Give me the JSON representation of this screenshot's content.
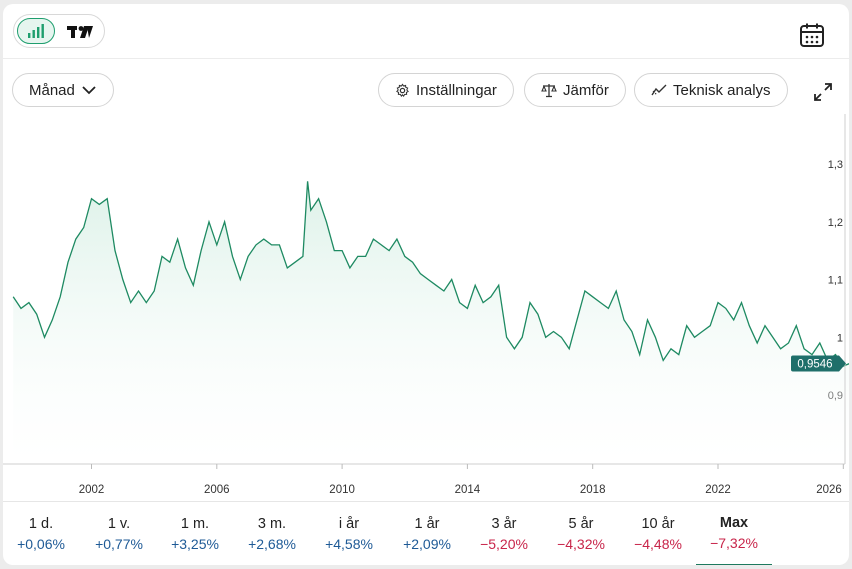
{
  "toolbar": {
    "period_select": "Månad",
    "settings_label": "Inställningar",
    "compare_label": "Jämför",
    "technical_label": "Teknisk analys"
  },
  "chart_data": {
    "type": "area",
    "title": "",
    "xlabel": "",
    "ylabel": "",
    "xlim": [
      1999.5,
      2026.2
    ],
    "ylim": [
      0.8,
      1.3
    ],
    "x_ticks": [
      "2002",
      "2006",
      "2010",
      "2014",
      "2018",
      "2022",
      "2026"
    ],
    "y_ticks": [
      "1,3",
      "1,2",
      "1,1",
      "1",
      "0,9"
    ],
    "last_value_label": "0,9546",
    "colors": {
      "line": "#1e8a62",
      "fill": "#e9f6f0",
      "badge": "#1f6f6a"
    },
    "series": [
      {
        "x": [
          1999.5,
          1999.75,
          2000,
          2000.25,
          2000.5,
          2000.75,
          2001,
          2001.25,
          2001.5,
          2001.75,
          2002,
          2002.25,
          2002.5,
          2002.75,
          2003,
          2003.25,
          2003.5,
          2003.75,
          2004,
          2004.25,
          2004.5,
          2004.75,
          2005,
          2005.25,
          2005.5,
          2005.75,
          2006,
          2006.25,
          2006.5,
          2006.75,
          2007,
          2007.25,
          2007.5,
          2007.75,
          2008,
          2008.25,
          2008.5,
          2008.75,
          2008.9,
          2009,
          2009.25,
          2009.5,
          2009.75,
          2010,
          2010.25,
          2010.5,
          2010.75,
          2011,
          2011.25,
          2011.5,
          2011.75,
          2012,
          2012.25,
          2012.5,
          2012.75,
          2013,
          2013.25,
          2013.5,
          2013.75,
          2014,
          2014.25,
          2014.5,
          2014.75,
          2015,
          2015.25,
          2015.5,
          2015.75,
          2016,
          2016.25,
          2016.5,
          2016.75,
          2017,
          2017.25,
          2017.5,
          2017.75,
          2018,
          2018.25,
          2018.5,
          2018.75,
          2019,
          2019.25,
          2019.5,
          2019.75,
          2020,
          2020.25,
          2020.5,
          2020.75,
          2021,
          2021.25,
          2021.5,
          2021.75,
          2022,
          2022.25,
          2022.5,
          2022.75,
          2023,
          2023.25,
          2023.5,
          2023.75,
          2024,
          2024.25,
          2024.5,
          2024.75,
          2025,
          2025.25,
          2025.5,
          2025.75,
          2026,
          2026.2
        ],
        "y": [
          1.07,
          1.05,
          1.06,
          1.04,
          1.0,
          1.03,
          1.07,
          1.13,
          1.17,
          1.19,
          1.24,
          1.23,
          1.24,
          1.15,
          1.1,
          1.06,
          1.08,
          1.06,
          1.08,
          1.14,
          1.13,
          1.17,
          1.12,
          1.09,
          1.15,
          1.2,
          1.16,
          1.2,
          1.14,
          1.1,
          1.14,
          1.16,
          1.17,
          1.16,
          1.16,
          1.12,
          1.13,
          1.14,
          1.27,
          1.22,
          1.24,
          1.2,
          1.15,
          1.15,
          1.12,
          1.14,
          1.14,
          1.17,
          1.16,
          1.15,
          1.17,
          1.14,
          1.13,
          1.11,
          1.1,
          1.09,
          1.08,
          1.1,
          1.06,
          1.05,
          1.09,
          1.06,
          1.07,
          1.09,
          1.0,
          0.98,
          1.0,
          1.06,
          1.04,
          1.0,
          1.01,
          1.0,
          0.98,
          1.03,
          1.08,
          1.07,
          1.06,
          1.05,
          1.08,
          1.03,
          1.01,
          0.97,
          1.03,
          1.0,
          0.96,
          0.98,
          0.97,
          1.02,
          1.0,
          1.01,
          1.02,
          1.06,
          1.05,
          1.03,
          1.06,
          1.02,
          0.99,
          1.02,
          1.0,
          0.98,
          0.99,
          1.02,
          0.98,
          0.97,
          0.99,
          0.96,
          0.97,
          0.95,
          0.9546
        ]
      }
    ],
    "legend": "none",
    "grid": false
  },
  "periods": [
    {
      "label": "1 d.",
      "value": "+0,06%",
      "sign": "pos"
    },
    {
      "label": "1 v.",
      "value": "+0,77%",
      "sign": "pos"
    },
    {
      "label": "1 m.",
      "value": "+3,25%",
      "sign": "pos"
    },
    {
      "label": "3 m.",
      "value": "+2,68%",
      "sign": "pos"
    },
    {
      "label": "i år",
      "value": "+4,58%",
      "sign": "pos"
    },
    {
      "label": "1 år",
      "value": "+2,09%",
      "sign": "pos"
    },
    {
      "label": "3 år",
      "value": "−5,20%",
      "sign": "neg"
    },
    {
      "label": "5 år",
      "value": "−4,32%",
      "sign": "neg"
    },
    {
      "label": "10 år",
      "value": "−4,48%",
      "sign": "neg"
    },
    {
      "label": "Max",
      "value": "−7,32%",
      "sign": "neg",
      "active": true
    }
  ]
}
